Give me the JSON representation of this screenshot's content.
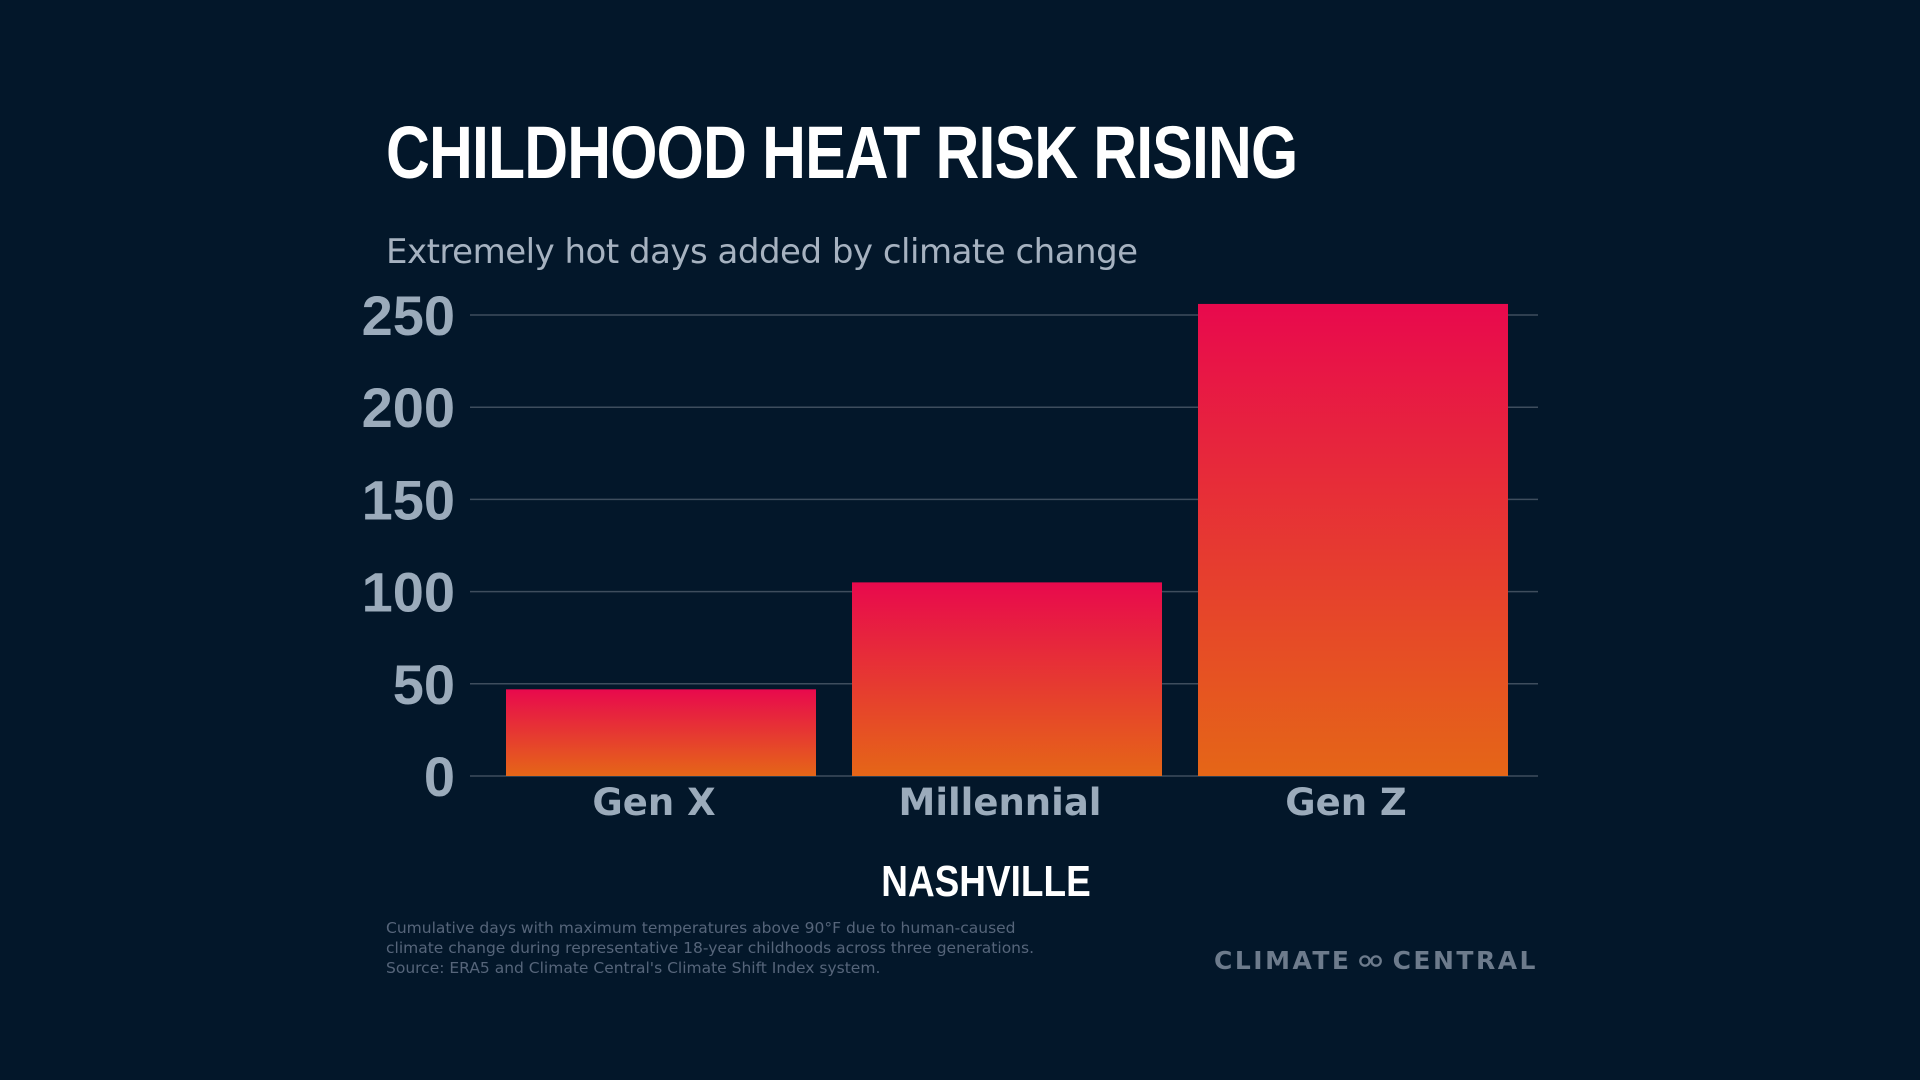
{
  "header": {
    "title": "CHILDHOOD HEAT RISK RISING",
    "subtitle": "Extremely hot days added by climate change"
  },
  "chart_data": {
    "type": "bar",
    "title": "CHILDHOOD HEAT RISK RISING",
    "subtitle": "Extremely hot days added by climate change",
    "categories": [
      "Gen X",
      "Millennial",
      "Gen Z"
    ],
    "values": [
      47,
      105,
      256
    ],
    "ylim": [
      0,
      250
    ],
    "yticks": [
      0,
      50,
      100,
      150,
      200,
      250
    ],
    "grid": true,
    "xlabel": "NASHVILLE",
    "ylabel": "",
    "colors": {
      "bar_top": "#e8094d",
      "bar_bottom": "#e56617",
      "grid": "#3e4d5d",
      "tick": "#9babbb"
    }
  },
  "caption": {
    "city": "NASHVILLE",
    "lines": [
      "Cumulative days with maximum temperatures above 90°F due to human-caused",
      "climate change during representative 18-year childhoods across three generations.",
      "Source: ERA5 and Climate Central's Climate Shift Index system."
    ]
  },
  "brand": {
    "left": "CLIMATE",
    "right": "CENTRAL",
    "icon": "climate-central-logo-icon"
  },
  "colors": {
    "background": "#03172a",
    "title": "#ffffff",
    "subtitle": "#a6b2c0"
  }
}
